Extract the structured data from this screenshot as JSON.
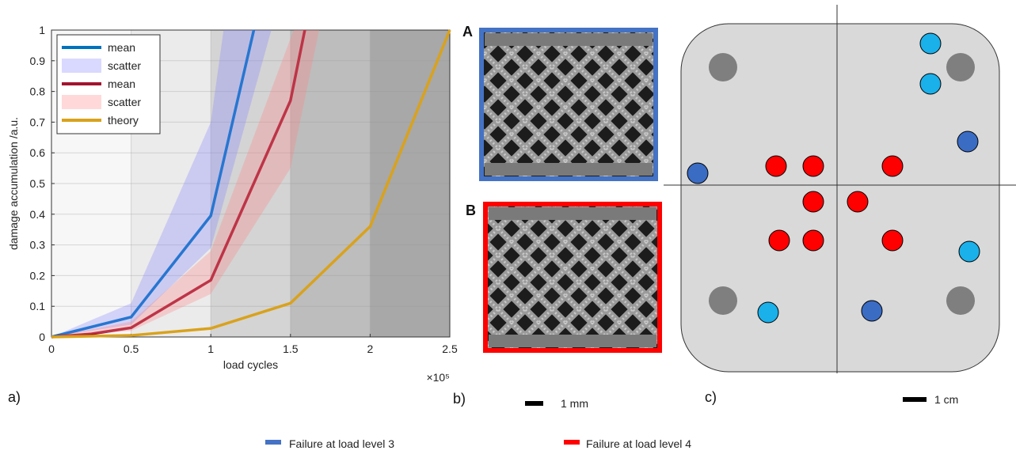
{
  "chart_data": {
    "type": "line",
    "x_label": "load cycles",
    "x_multiplier": "×10⁵",
    "y_label": "damage accumulation /a.u.",
    "xlim": [
      0,
      2.5
    ],
    "xticks": [
      0,
      0.5,
      1,
      1.5,
      2,
      2.5
    ],
    "ylim": [
      0,
      1
    ],
    "yticks": [
      0,
      0.1,
      0.2,
      0.3,
      0.4,
      0.5,
      0.6,
      0.7,
      0.8,
      0.9,
      1
    ],
    "grid": true,
    "legend": "upper left",
    "series": [
      {
        "name": "mean",
        "kind": "line",
        "color": "#0072bd",
        "x": [
          0,
          0.5,
          1,
          1.27
        ],
        "values": [
          0,
          0.065,
          0.395,
          1
        ]
      },
      {
        "name": "scatter",
        "kind": "band",
        "color": "#8080ff",
        "upper": {
          "x": [
            0,
            0.5,
            1,
            1.08
          ],
          "values": [
            0,
            0.11,
            0.7,
            1
          ]
        },
        "lower": {
          "x": [
            0,
            0.5,
            1,
            1.38
          ],
          "values": [
            0,
            0.04,
            0.29,
            1
          ]
        }
      },
      {
        "name": "mean",
        "kind": "line",
        "color": "#a2142f",
        "x": [
          0,
          0.25,
          0.5,
          1,
          1.5,
          1.59
        ],
        "values": [
          0,
          0.01,
          0.03,
          0.185,
          0.77,
          1
        ]
      },
      {
        "name": "scatter",
        "kind": "band",
        "color": "#ff8080",
        "upper": {
          "x": [
            0,
            0.5,
            1,
            1.52
          ],
          "values": [
            0,
            0.05,
            0.28,
            1
          ]
        },
        "lower": {
          "x": [
            0,
            0.5,
            1,
            1.5,
            1.68
          ],
          "values": [
            0,
            0.02,
            0.14,
            0.55,
            1
          ]
        }
      },
      {
        "name": "theory",
        "kind": "line",
        "color": "#d9a21c",
        "x": [
          0,
          0.5,
          1,
          1.5,
          2,
          2.5
        ],
        "values": [
          0,
          0.005,
          0.028,
          0.11,
          0.36,
          1
        ]
      }
    ]
  },
  "panels": {
    "a": {
      "label": "a)"
    },
    "b": {
      "label": "b)",
      "image_a": "A",
      "image_b": "B",
      "scale": "1 mm"
    },
    "c": {
      "label": "c)",
      "scale": "1 cm"
    }
  },
  "legend": [
    {
      "name": "Failure at load level 3",
      "color": "#4472c4"
    },
    {
      "name": "Failure at load level 4",
      "color": "#ff0000"
    }
  ]
}
